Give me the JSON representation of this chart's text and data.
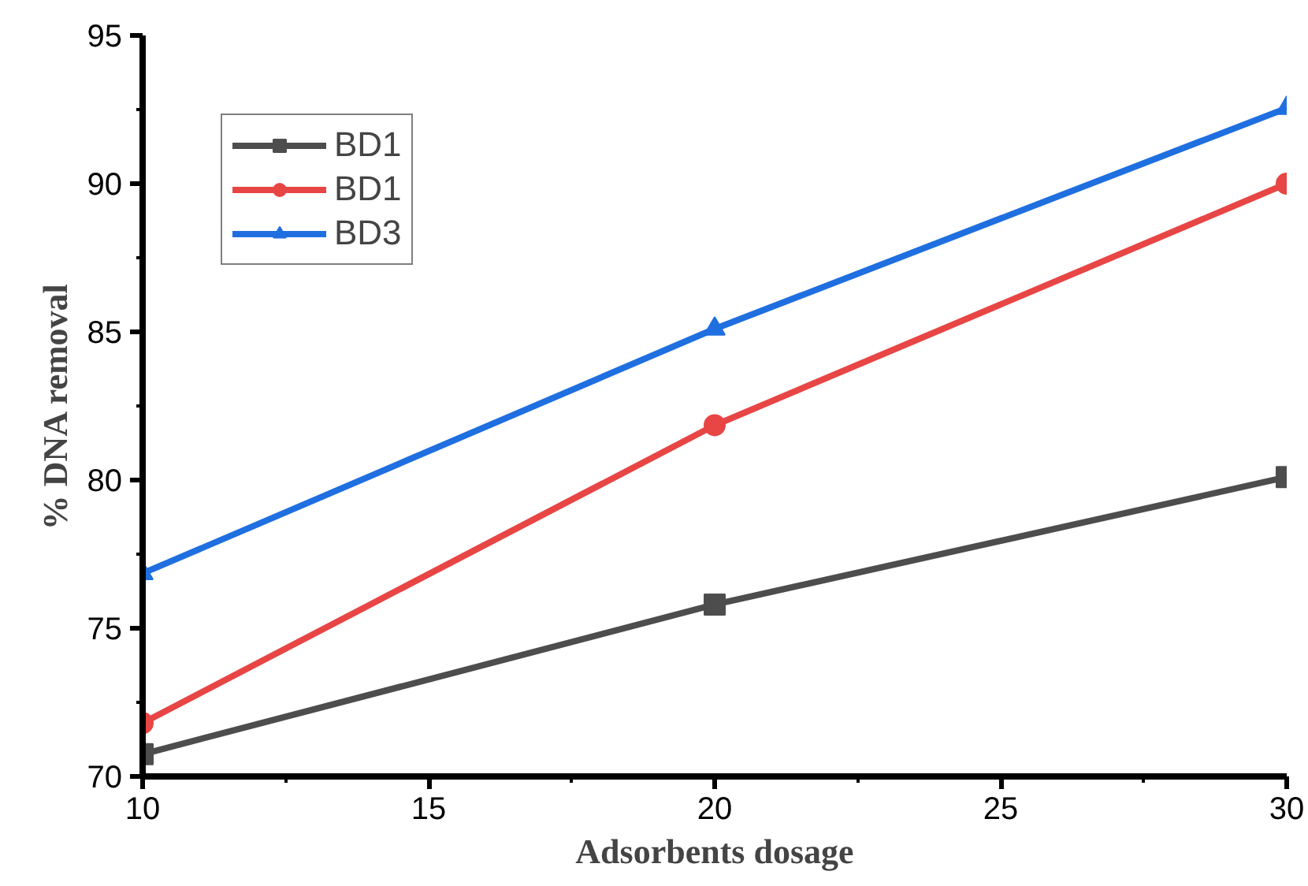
{
  "chart_data": {
    "type": "line",
    "xlabel": "Adsorbents dosage",
    "ylabel": "% DNA removal",
    "x": [
      10,
      20,
      30
    ],
    "series": [
      {
        "name": "BD1",
        "color": "#4d4d4d",
        "marker": "square",
        "values": [
          70.75,
          75.8,
          80.1
        ]
      },
      {
        "name": "BD1",
        "color": "#e84545",
        "marker": "circle",
        "values": [
          71.8,
          81.85,
          90.0
        ]
      },
      {
        "name": "BD3",
        "color": "#1f6fe0",
        "marker": "triangle",
        "values": [
          76.85,
          85.1,
          92.55
        ]
      }
    ],
    "xlim": [
      10,
      30
    ],
    "xticks": [
      10,
      15,
      20,
      25,
      30
    ],
    "ylim": [
      70,
      95
    ],
    "yticks": [
      70,
      75,
      80,
      85,
      90,
      95
    ],
    "grid": false,
    "legend": "top left",
    "line_style": "solid"
  }
}
